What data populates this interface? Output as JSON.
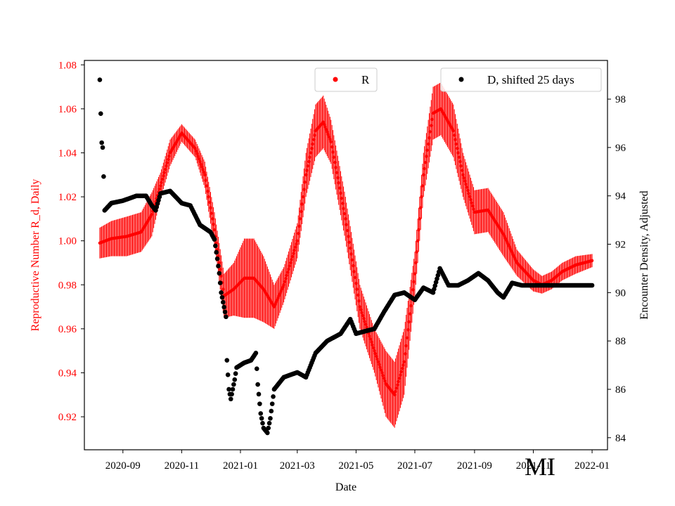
{
  "chart_data": {
    "type": "scatter",
    "title": "",
    "xlabel": "Date",
    "ylabel_left": "Reproductive Number R_d, Daily",
    "ylabel_right": "Encounter Density, Adjusted",
    "xlim": [
      "2020-07-23",
      "2022-01-17"
    ],
    "ylim_left": [
      0.905,
      1.082
    ],
    "ylim_right": [
      83.5,
      99.6
    ],
    "x_ticks": [
      "2020-09",
      "2020-11",
      "2021-01",
      "2021-03",
      "2021-05",
      "2021-07",
      "2021-09",
      "2021-11",
      "2022-01"
    ],
    "y_left_ticks": [
      "0.92",
      "0.94",
      "0.96",
      "0.98",
      "1.00",
      "1.02",
      "1.04",
      "1.06",
      "1.08"
    ],
    "y_right_ticks": [
      "84",
      "86",
      "88",
      "90",
      "92",
      "94",
      "96",
      "98"
    ],
    "watermark": "MI",
    "grid": false,
    "legend_placement": "top",
    "colors": {
      "R": "#ff0000",
      "D": "#000000",
      "left_axis": "#ff0000",
      "right_axis": "#000000"
    },
    "series": [
      {
        "name": "R",
        "axis": "left",
        "color": "#ff0000",
        "marker": "circle with vertical error bars",
        "points": [
          [
            "2020-08-08",
            0.999,
            0.007
          ],
          [
            "2020-08-20",
            1.001,
            0.008
          ],
          [
            "2020-09-05",
            1.002,
            0.009
          ],
          [
            "2020-09-20",
            1.004,
            0.009
          ],
          [
            "2020-10-01",
            1.012,
            0.01
          ],
          [
            "2020-10-10",
            1.025,
            0.006
          ],
          [
            "2020-10-20",
            1.04,
            0.006
          ],
          [
            "2020-11-01",
            1.049,
            0.004
          ],
          [
            "2020-11-15",
            1.042,
            0.004
          ],
          [
            "2020-11-25",
            1.03,
            0.006
          ],
          [
            "2020-12-05",
            1.005,
            0.008
          ],
          [
            "2020-12-15",
            0.975,
            0.01
          ],
          [
            "2020-12-25",
            0.978,
            0.012
          ],
          [
            "2021-01-05",
            0.983,
            0.018
          ],
          [
            "2021-01-15",
            0.983,
            0.018
          ],
          [
            "2021-01-25",
            0.978,
            0.015
          ],
          [
            "2021-02-05",
            0.97,
            0.01
          ],
          [
            "2021-02-15",
            0.98,
            0.008
          ],
          [
            "2021-03-01",
            1.0,
            0.008
          ],
          [
            "2021-03-10",
            1.03,
            0.01
          ],
          [
            "2021-03-20",
            1.05,
            0.012
          ],
          [
            "2021-03-28",
            1.054,
            0.012
          ],
          [
            "2021-04-05",
            1.045,
            0.01
          ],
          [
            "2021-04-20",
            1.01,
            0.01
          ],
          [
            "2021-05-05",
            0.97,
            0.01
          ],
          [
            "2021-05-20",
            0.95,
            0.01
          ],
          [
            "2021-06-01",
            0.935,
            0.015
          ],
          [
            "2021-06-10",
            0.93,
            0.015
          ],
          [
            "2021-06-20",
            0.945,
            0.015
          ],
          [
            "2021-07-01",
            0.985,
            0.01
          ],
          [
            "2021-07-10",
            1.03,
            0.01
          ],
          [
            "2021-07-20",
            1.058,
            0.012
          ],
          [
            "2021-07-28",
            1.06,
            0.012
          ],
          [
            "2021-08-10",
            1.05,
            0.012
          ],
          [
            "2021-08-20",
            1.03,
            0.01
          ],
          [
            "2021-09-01",
            1.013,
            0.01
          ],
          [
            "2021-09-15",
            1.014,
            0.01
          ],
          [
            "2021-10-01",
            1.003,
            0.01
          ],
          [
            "2021-10-15",
            0.99,
            0.006
          ],
          [
            "2021-11-01",
            0.982,
            0.005
          ],
          [
            "2021-11-10",
            0.98,
            0.004
          ],
          [
            "2021-11-20",
            0.982,
            0.004
          ],
          [
            "2021-12-01",
            0.986,
            0.004
          ],
          [
            "2021-12-15",
            0.989,
            0.004
          ],
          [
            "2022-01-01",
            0.991,
            0.003
          ]
        ]
      },
      {
        "name": "D, shifted 25 days",
        "axis": "right",
        "color": "#000000",
        "marker": "circle",
        "points": [
          [
            "2020-08-08",
            98.8
          ],
          [
            "2020-08-09",
            97.4
          ],
          [
            "2020-08-10",
            96.2
          ],
          [
            "2020-08-11",
            96.0
          ],
          [
            "2020-08-12",
            94.8
          ],
          [
            "2020-08-13",
            93.4
          ],
          [
            "2020-08-20",
            93.7
          ],
          [
            "2020-09-01",
            93.8
          ],
          [
            "2020-09-15",
            94.0
          ],
          [
            "2020-09-25",
            94.0
          ],
          [
            "2020-10-01",
            93.6
          ],
          [
            "2020-10-05",
            93.4
          ],
          [
            "2020-10-10",
            94.1
          ],
          [
            "2020-10-20",
            94.2
          ],
          [
            "2020-11-01",
            93.7
          ],
          [
            "2020-11-10",
            93.6
          ],
          [
            "2020-11-20",
            92.8
          ],
          [
            "2020-12-01",
            92.5
          ],
          [
            "2020-12-05",
            92.2
          ],
          [
            "2020-12-08",
            91.4
          ],
          [
            "2020-12-10",
            90.8
          ],
          [
            "2020-12-12",
            90.0
          ],
          [
            "2020-12-15",
            89.4
          ],
          [
            "2020-12-17",
            89.0
          ],
          [
            "2020-12-18",
            87.2
          ],
          [
            "2020-12-20",
            86.0
          ],
          [
            "2020-12-22",
            85.6
          ],
          [
            "2020-12-26",
            86.4
          ],
          [
            "2020-12-28",
            86.9
          ],
          [
            "2021-01-05",
            87.1
          ],
          [
            "2021-01-12",
            87.2
          ],
          [
            "2021-01-17",
            87.5
          ],
          [
            "2021-01-19",
            86.2
          ],
          [
            "2021-01-22",
            85.0
          ],
          [
            "2021-01-25",
            84.4
          ],
          [
            "2021-01-29",
            84.2
          ],
          [
            "2021-02-01",
            84.8
          ],
          [
            "2021-02-05",
            86.0
          ],
          [
            "2021-02-15",
            86.5
          ],
          [
            "2021-03-01",
            86.7
          ],
          [
            "2021-03-10",
            86.5
          ],
          [
            "2021-03-20",
            87.5
          ],
          [
            "2021-04-01",
            88.0
          ],
          [
            "2021-04-15",
            88.3
          ],
          [
            "2021-04-25",
            88.9
          ],
          [
            "2021-05-01",
            88.3
          ],
          [
            "2021-05-10",
            88.4
          ],
          [
            "2021-05-20",
            88.5
          ],
          [
            "2021-05-30",
            89.2
          ],
          [
            "2021-06-10",
            89.9
          ],
          [
            "2021-06-20",
            90.0
          ],
          [
            "2021-07-01",
            89.7
          ],
          [
            "2021-07-10",
            90.2
          ],
          [
            "2021-07-20",
            90.0
          ],
          [
            "2021-07-27",
            91.0
          ],
          [
            "2021-08-05",
            90.3
          ],
          [
            "2021-08-15",
            90.3
          ],
          [
            "2021-08-25",
            90.5
          ],
          [
            "2021-09-05",
            90.8
          ],
          [
            "2021-09-15",
            90.5
          ],
          [
            "2021-09-25",
            90.0
          ],
          [
            "2021-10-01",
            89.8
          ],
          [
            "2021-10-10",
            90.4
          ],
          [
            "2021-10-20",
            90.3
          ],
          [
            "2021-11-01",
            90.3
          ],
          [
            "2021-12-01",
            90.3
          ],
          [
            "2022-01-01",
            90.3
          ]
        ]
      }
    ]
  }
}
